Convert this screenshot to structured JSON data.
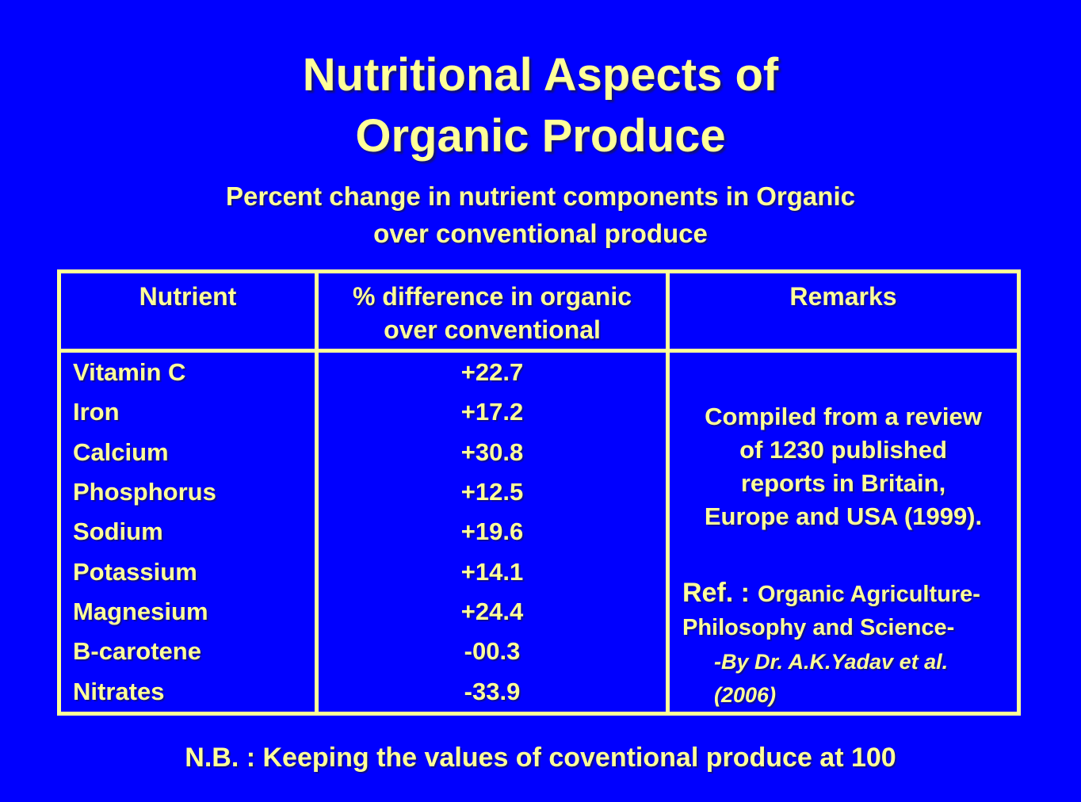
{
  "slide": {
    "background_color": "#0000FF",
    "text_color": "#FFFF99",
    "title_lines": [
      "Nutritional Aspects of",
      "Organic Produce"
    ],
    "subtitle_lines": [
      "Percent change in nutrient components in Organic",
      "over conventional produce"
    ],
    "footnote": "N.B. : Keeping the values of coventional produce at 100"
  },
  "table": {
    "border_color": "#FFFF99",
    "headers": {
      "nutrient": "Nutrient",
      "difference_lines": [
        "% difference in organic",
        "over conventional"
      ],
      "remarks": "Remarks"
    },
    "rows": [
      {
        "nutrient": "Vitamin C",
        "value": "+22.7"
      },
      {
        "nutrient": "Iron",
        "value": "+17.2"
      },
      {
        "nutrient": "Calcium",
        "value": "+30.8"
      },
      {
        "nutrient": "Phosphorus",
        "value": "+12.5"
      },
      {
        "nutrient": "Sodium",
        "value": "+19.6"
      },
      {
        "nutrient": "Potassium",
        "value": "+14.1"
      },
      {
        "nutrient": "Magnesium",
        "value": "+24.4"
      },
      {
        "nutrient": "B-carotene",
        "value": "-00.3"
      },
      {
        "nutrient": "Nitrates",
        "value": "-33.9"
      }
    ],
    "remarks": {
      "compiled_lines": [
        "Compiled from a review",
        "of 1230 published",
        "reports in Britain,",
        "Europe and USA (1999)."
      ],
      "ref_label": "Ref. :",
      "ref_title_lines": [
        "Organic Agriculture-",
        "Philosophy and Science-"
      ],
      "ref_byline": "-By Dr. A.K.Yadav et al.(2006)"
    }
  },
  "chart_data": {
    "type": "table",
    "title": "Percent change in nutrient components in Organic over conventional produce",
    "columns": [
      "Nutrient",
      "% difference in organic over conventional",
      "Remarks"
    ],
    "categories": [
      "Vitamin C",
      "Iron",
      "Calcium",
      "Phosphorus",
      "Sodium",
      "Potassium",
      "Magnesium",
      "B-carotene",
      "Nitrates"
    ],
    "values": [
      22.7,
      17.2,
      30.8,
      12.5,
      19.6,
      14.1,
      24.4,
      -0.3,
      -33.9
    ],
    "remarks_note": "Compiled from a review of 1230 published reports in Britain, Europe and USA (1999).",
    "reference": "Ref. : Organic Agriculture-Philosophy and Science- -By Dr. A.K.Yadav et al.(2006)",
    "baseline_note": "N.B. : Keeping the values of coventional produce at 100"
  }
}
